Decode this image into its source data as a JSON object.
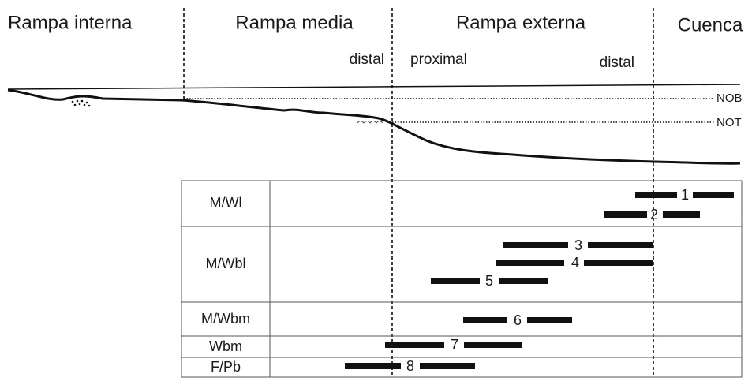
{
  "zones": [
    "Rampa interna",
    "Rampa media",
    "Rampa externa",
    "Cuenca"
  ],
  "subzones": [
    "distal",
    "proximal",
    "distal"
  ],
  "levels": [
    "NOB",
    "NOT"
  ],
  "table": {
    "rows": [
      "M/Wl",
      "M/Wbl",
      "M/Wbm",
      "Wbm",
      "F/Pb"
    ]
  },
  "bars": [
    1,
    2,
    3,
    4,
    5,
    6,
    7,
    8
  ]
}
